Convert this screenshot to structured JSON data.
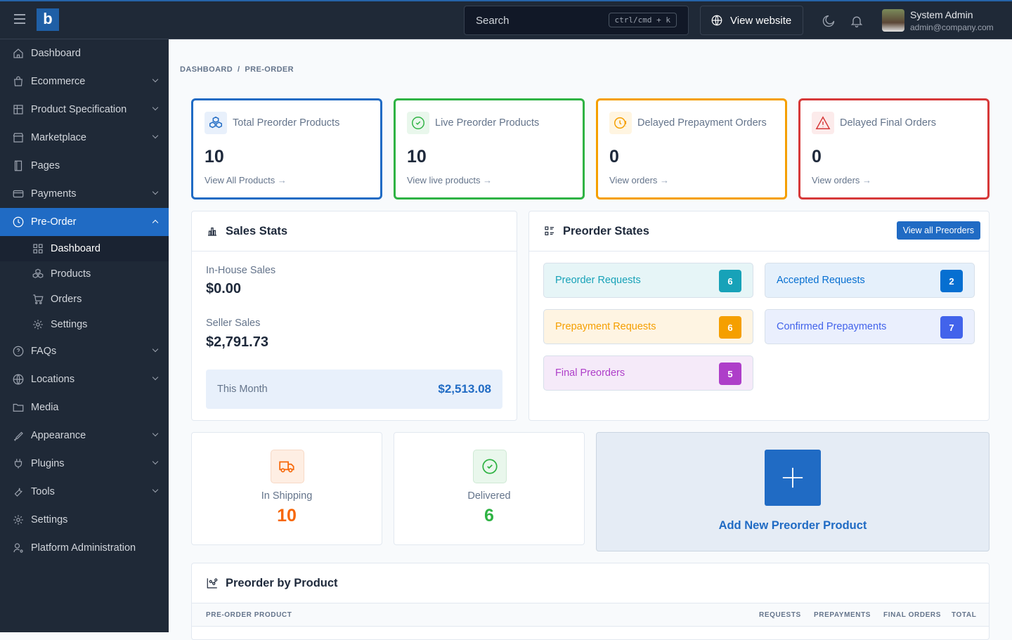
{
  "topbar": {
    "search_placeholder": "Search",
    "search_shortcut": "ctrl/cmd + k",
    "view_website": "View website",
    "user_name": "System Admin",
    "user_email": "admin@company.com"
  },
  "sidebar": {
    "items": [
      {
        "label": "Dashboard",
        "icon": "home-icon"
      },
      {
        "label": "Ecommerce",
        "icon": "bag-icon",
        "chevron": true
      },
      {
        "label": "Product Specification",
        "icon": "table-icon",
        "chevron": true
      },
      {
        "label": "Marketplace",
        "icon": "store-icon",
        "chevron": true
      },
      {
        "label": "Pages",
        "icon": "book-icon"
      },
      {
        "label": "Payments",
        "icon": "card-icon",
        "chevron": true
      },
      {
        "label": "Pre-Order",
        "icon": "clock-icon",
        "chevron": true,
        "active": true
      }
    ],
    "subitems": [
      {
        "label": "Dashboard",
        "icon": "grid-icon",
        "current": true
      },
      {
        "label": "Products",
        "icon": "boxes-icon"
      },
      {
        "label": "Orders",
        "icon": "cart-icon"
      },
      {
        "label": "Settings",
        "icon": "gear-icon"
      }
    ],
    "items2": [
      {
        "label": "FAQs",
        "icon": "help-icon",
        "chevron": true
      },
      {
        "label": "Locations",
        "icon": "globe-icon",
        "chevron": true
      },
      {
        "label": "Media",
        "icon": "folder-icon"
      },
      {
        "label": "Appearance",
        "icon": "brush-icon",
        "chevron": true
      },
      {
        "label": "Plugins",
        "icon": "plug-icon",
        "chevron": true
      },
      {
        "label": "Tools",
        "icon": "tool-icon",
        "chevron": true
      },
      {
        "label": "Settings",
        "icon": "gear-icon"
      },
      {
        "label": "Platform Administration",
        "icon": "user-cog-icon"
      }
    ]
  },
  "breadcrumb": [
    "DASHBOARD",
    "PRE-ORDER"
  ],
  "stats": [
    {
      "label": "Total Preorder Products",
      "value": "10",
      "link": "View All Products",
      "color": "#206bc4",
      "bg": "#e8f0fb",
      "icon": "boxes-icon"
    },
    {
      "label": "Live Preorder Products",
      "value": "10",
      "link": "View live products",
      "color": "#2fb344",
      "bg": "#e9f7ec",
      "icon": "check-circle-icon"
    },
    {
      "label": "Delayed Prepayment Orders",
      "value": "0",
      "link": "View orders",
      "color": "#f59f00",
      "bg": "#fff5e1",
      "icon": "clock-alert-icon"
    },
    {
      "label": "Delayed Final Orders",
      "value": "0",
      "link": "View orders",
      "color": "#d63939",
      "bg": "#fcebeb",
      "icon": "alert-triangle-icon"
    }
  ],
  "sales": {
    "title": "Sales Stats",
    "inhouse_label": "In-House Sales",
    "inhouse_value": "$0.00",
    "seller_label": "Seller Sales",
    "seller_value": "$2,791.73",
    "month_label": "This Month",
    "month_value": "$2,513.08"
  },
  "states": {
    "title": "Preorder States",
    "button": "View all Preorders",
    "items": [
      {
        "label": "Preorder Requests",
        "count": "6",
        "color": "#17a2b8",
        "bg": "#e6f5f7"
      },
      {
        "label": "Accepted Requests",
        "count": "2",
        "color": "#066fd1",
        "bg": "#e5f0fb"
      },
      {
        "label": "Prepayment Requests",
        "count": "6",
        "color": "#f59f00",
        "bg": "#fef4e2"
      },
      {
        "label": "Confirmed Prepayments",
        "count": "7",
        "color": "#4263eb",
        "bg": "#eaeffd"
      },
      {
        "label": "Final Preorders",
        "count": "5",
        "color": "#ae3ec9",
        "bg": "#f5eaf9"
      }
    ]
  },
  "shipping": {
    "label": "In Shipping",
    "value": "10",
    "color": "#f76707"
  },
  "delivered": {
    "label": "Delivered",
    "value": "6",
    "color": "#2fb344"
  },
  "add_new": {
    "label": "Add New Preorder Product"
  },
  "table": {
    "title": "Preorder by Product",
    "columns": [
      "PRE-ORDER PRODUCT",
      "REQUESTS",
      "PREPAYMENTS",
      "FINAL ORDERS",
      "TOTAL"
    ]
  }
}
